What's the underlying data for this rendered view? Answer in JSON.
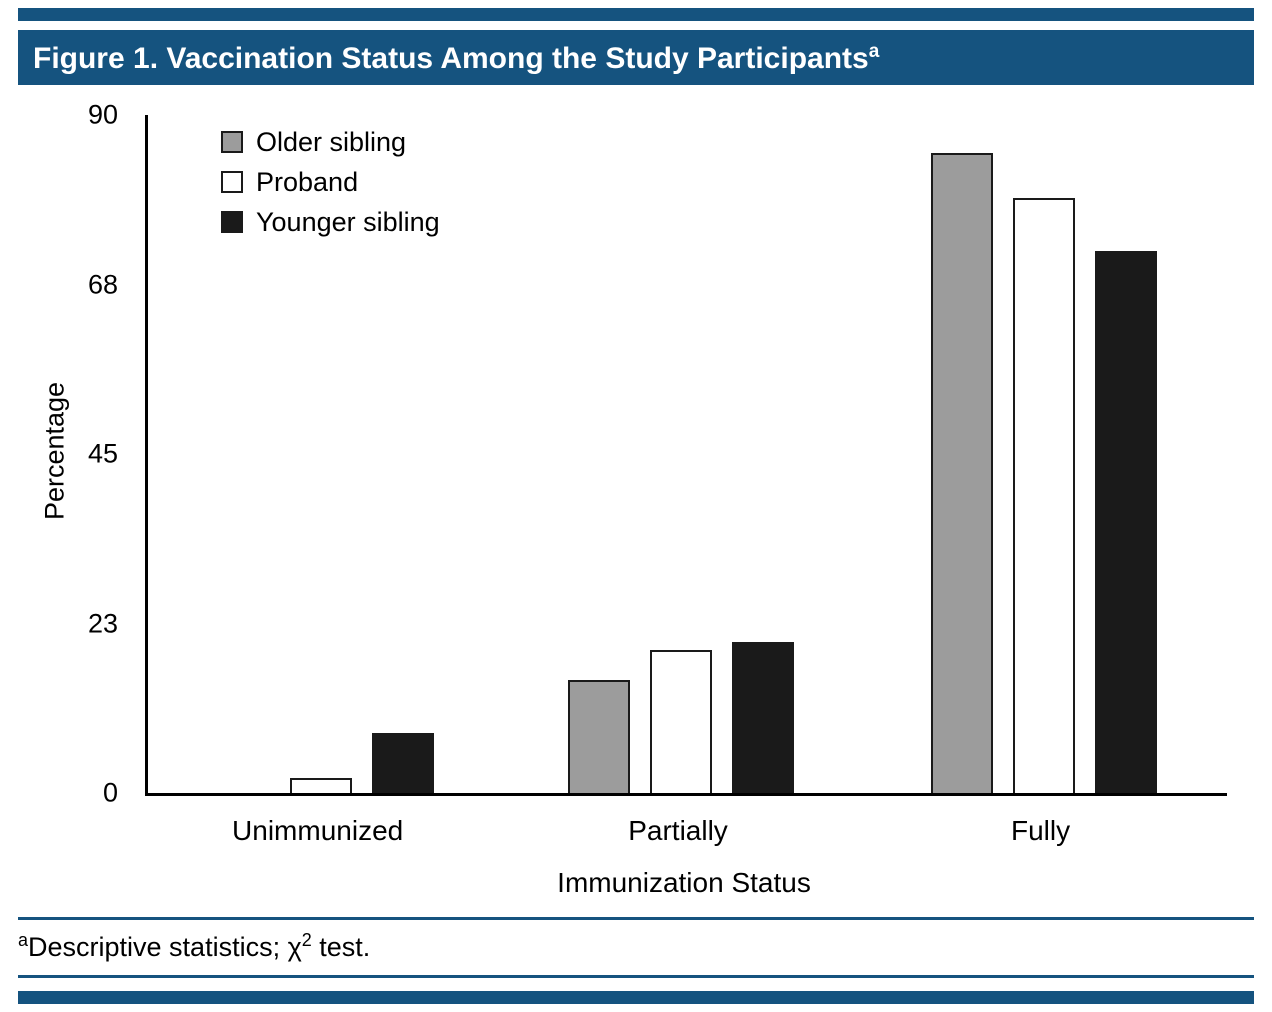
{
  "page": {
    "accent_color": "#15537F",
    "background": "#FFFFFF"
  },
  "header": {
    "title": "Figure 1. Vaccination Status Among the Study Participants",
    "superscript": "a"
  },
  "chart_data": {
    "type": "bar",
    "title": "Vaccination Status Among the Study Participants",
    "categories": [
      "Unimmunized",
      "Partially",
      "Fully"
    ],
    "series": [
      {
        "name": "Older sibling",
        "color": "#9C9C9C",
        "values": [
          0,
          15,
          85
        ]
      },
      {
        "name": "Proband",
        "color": "#FFFFFF",
        "values": [
          2,
          19,
          79
        ]
      },
      {
        "name": "Younger sibling",
        "color": "#1A1A1A",
        "values": [
          8,
          20,
          72
        ]
      }
    ],
    "xlabel": "Immunization Status",
    "ylabel": "Percentage",
    "ylim": [
      0,
      90
    ],
    "yticks": [
      {
        "label": "0",
        "value": 0
      },
      {
        "label": "23",
        "value": 22.5
      },
      {
        "label": "45",
        "value": 45
      },
      {
        "label": "68",
        "value": 67.5
      },
      {
        "label": "90",
        "value": 90
      }
    ],
    "legend_position": "top-left",
    "grid": false,
    "bar_outline_color": "#1A1A1A"
  },
  "footnote": {
    "marker": "a",
    "text_before_sup": "Descriptive statistics; χ",
    "exponent": "2",
    "text_after_sup": " test."
  }
}
